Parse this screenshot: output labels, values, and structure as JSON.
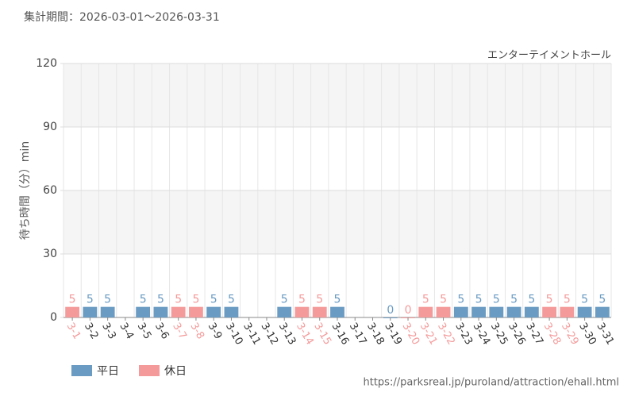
{
  "chart_data": {
    "type": "bar",
    "title": "集計期間：2026-03-01～2026-03-31",
    "subtitle": "エンターテイメントホール",
    "ylabel": "待ち時間（分）min",
    "source": "https://parksreal.jp/puroland/attraction/ehall.html",
    "categories": [
      "3-1",
      "3-2",
      "3-3",
      "3-4",
      "3-5",
      "3-6",
      "3-7",
      "3-8",
      "3-9",
      "3-10",
      "3-11",
      "3-12",
      "3-13",
      "3-14",
      "3-15",
      "3-16",
      "3-17",
      "3-18",
      "3-19",
      "3-20",
      "3-21",
      "3-22",
      "3-23",
      "3-24",
      "3-25",
      "3-26",
      "3-27",
      "3-28",
      "3-29",
      "3-30",
      "3-31"
    ],
    "series": [
      {
        "name": "平日",
        "color": "#6a9bc3",
        "values": [
          null,
          5,
          5,
          null,
          5,
          5,
          null,
          null,
          5,
          5,
          null,
          null,
          5,
          null,
          null,
          5,
          null,
          null,
          0,
          null,
          null,
          null,
          5,
          5,
          5,
          5,
          5,
          null,
          null,
          5,
          5
        ]
      },
      {
        "name": "休日",
        "color": "#f59a9a",
        "values": [
          5,
          null,
          null,
          null,
          null,
          null,
          5,
          5,
          null,
          null,
          null,
          null,
          null,
          5,
          5,
          null,
          null,
          null,
          null,
          0,
          5,
          5,
          null,
          null,
          null,
          null,
          null,
          5,
          5,
          null,
          null
        ]
      }
    ],
    "ylim": [
      0,
      120
    ],
    "yticks": [
      0,
      30,
      60,
      90,
      120
    ],
    "grid": true
  }
}
